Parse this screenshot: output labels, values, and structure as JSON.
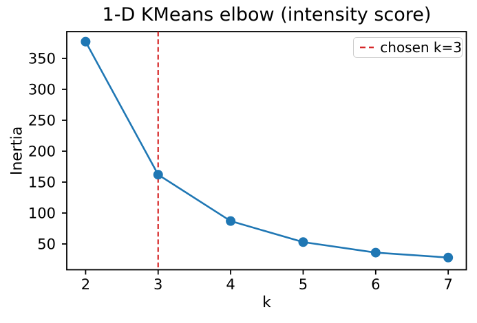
{
  "figure": {
    "background": "#ffffff"
  },
  "chart_data": {
    "type": "line",
    "title": "1-D KMeans elbow (intensity score)",
    "xlabel": "k",
    "ylabel": "Inertia",
    "x": [
      2,
      3,
      4,
      5,
      6,
      7
    ],
    "series": [
      {
        "name": "inertia",
        "color": "#1f77b4",
        "marker": "o",
        "values": [
          377,
          162,
          87,
          53,
          36,
          28
        ]
      }
    ],
    "xticks": [
      2,
      3,
      4,
      5,
      6,
      7
    ],
    "yticks": [
      50,
      100,
      150,
      200,
      250,
      300,
      350
    ],
    "xlim": [
      1.74,
      7.25
    ],
    "ylim": [
      8.3,
      393.3
    ],
    "grid": false,
    "axis_color": "#000000",
    "vline": {
      "x": 3,
      "color": "#d62728",
      "linestyle": "dashed",
      "label": "chosen k=3"
    },
    "legend": {
      "position": "upper right",
      "border_color": "#cccccc",
      "entries": [
        {
          "label": "chosen k=3",
          "color": "#d62728",
          "linestyle": "dashed"
        }
      ]
    }
  }
}
